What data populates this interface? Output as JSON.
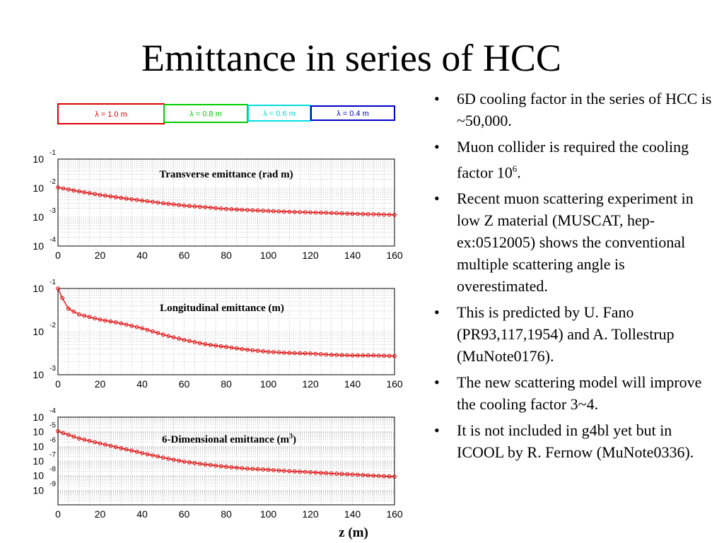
{
  "title": "Emittance in series of HCC",
  "bullets": [
    {
      "text": "6D cooling factor in the series of HCC is ~50,000."
    },
    {
      "text": "Muon collider is required the cooling factor 10",
      "sup": "6",
      "tail": "."
    },
    {
      "text": "Recent muon scattering experiment in low Z material (MUSCAT, hep-ex:0512005) shows the conventional multiple scattering angle is overestimated."
    },
    {
      "text": "This is predicted by U. Fano (PR93,117,1954) and A. Tollestrup (MuNote0176)."
    },
    {
      "text": "The new scattering model will improve the cooling factor 3~4."
    },
    {
      "text": "It is not included in g4bl yet but in ICOOL by R. Fernow (MuNote0336)."
    }
  ],
  "legend": [
    {
      "label": "λ = 1.0 m",
      "color": "#dd0000"
    },
    {
      "label": "λ = 0.8 m",
      "color": "#00cc00"
    },
    {
      "label": "λ = 0.6 m",
      "color": "#00dddd"
    },
    {
      "label": "λ = 0.4 m",
      "color": "#0000cc"
    }
  ],
  "x_axis_label": "z (m)",
  "chart_data": [
    {
      "type": "scatter",
      "title": "Transverse emittance (rad m)",
      "y_scale": "log",
      "xlim": [
        0,
        160
      ],
      "ylim": [
        0.0001,
        0.1
      ],
      "x_ticks": [
        0,
        20,
        40,
        60,
        80,
        100,
        120,
        140,
        160
      ],
      "y_tick_exponents": [
        -1,
        -2,
        -3,
        -4
      ],
      "grid": true,
      "series": [
        {
          "color": "#dd0000",
          "x": [
            0,
            10,
            20,
            30,
            40,
            50,
            60,
            70,
            80,
            90,
            100,
            110,
            120,
            130,
            140,
            150,
            160
          ],
          "y": [
            0.0105,
            0.0077,
            0.0058,
            0.0046,
            0.0037,
            0.003,
            0.0025,
            0.0022,
            0.0019,
            0.00175,
            0.00162,
            0.00152,
            0.00145,
            0.00138,
            0.0013,
            0.00125,
            0.0012
          ]
        }
      ]
    },
    {
      "type": "scatter",
      "title": "Longitudinal emittance (m)",
      "y_scale": "log",
      "xlim": [
        0,
        160
      ],
      "ylim": [
        0.001,
        0.1
      ],
      "x_ticks": [
        0,
        20,
        40,
        60,
        80,
        100,
        120,
        140,
        160
      ],
      "y_tick_exponents": [
        -1,
        -2,
        -3
      ],
      "grid": true,
      "series": [
        {
          "color": "#dd0000",
          "x": [
            0,
            2,
            5,
            10,
            20,
            30,
            40,
            50,
            60,
            70,
            80,
            90,
            100,
            110,
            120,
            130,
            140,
            150,
            160
          ],
          "y": [
            0.1,
            0.06,
            0.034,
            0.025,
            0.019,
            0.0155,
            0.012,
            0.0085,
            0.0064,
            0.0051,
            0.0044,
            0.0038,
            0.0034,
            0.0032,
            0.0031,
            0.0029,
            0.0028,
            0.0028,
            0.0027
          ]
        }
      ]
    },
    {
      "type": "scatter",
      "title": "6-Dimensional emittance (m",
      "title_sup": "3",
      "title_tail": ")",
      "y_scale": "log",
      "xlim": [
        0,
        160
      ],
      "ylim": [
        1e-10,
        0.0001
      ],
      "x_ticks": [
        0,
        20,
        40,
        60,
        80,
        100,
        120,
        140,
        160
      ],
      "y_tick_exponents": [
        -4,
        -5,
        -6,
        -7,
        -8,
        -9
      ],
      "grid": true,
      "series": [
        {
          "color": "#dd0000",
          "x": [
            0,
            10,
            20,
            30,
            40,
            50,
            60,
            70,
            80,
            90,
            100,
            110,
            120,
            130,
            140,
            150,
            160
          ],
          "y": [
            1.1e-05,
            3.5e-06,
            1.6e-06,
            7.5e-07,
            3.5e-07,
            1.7e-07,
            9e-08,
            5.8e-08,
            4e-08,
            3e-08,
            2.5e-08,
            2e-08,
            1.7e-08,
            1.4e-08,
            1.2e-08,
            1e-08,
            8.5e-09
          ]
        }
      ]
    }
  ]
}
